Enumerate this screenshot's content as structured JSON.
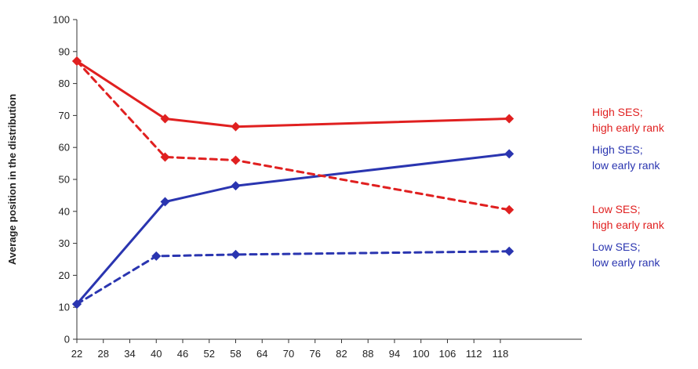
{
  "chart_data": {
    "type": "line",
    "title": "",
    "xlabel": "",
    "ylabel": "Average position in the distribution",
    "xlim": [
      22,
      120
    ],
    "ylim": [
      0,
      100
    ],
    "x_ticks": [
      "22",
      "28",
      "34",
      "40",
      "46",
      "52",
      "58",
      "64",
      "70",
      "76",
      "82",
      "88",
      "94",
      "100",
      "106",
      "112",
      "118"
    ],
    "y_ticks": [
      "0",
      "10",
      "20",
      "30",
      "40",
      "50",
      "60",
      "70",
      "80",
      "90",
      "100"
    ],
    "grid": false,
    "legend": "direct labels at right end of lines",
    "series": [
      {
        "name": "High SES; high early rank",
        "label_lines": [
          "High SES;",
          "high early rank"
        ],
        "color": "#e02020",
        "dash": "solid",
        "marker": "diamond",
        "points": [
          [
            22,
            87
          ],
          [
            42,
            69
          ],
          [
            58,
            66.5
          ],
          [
            120,
            69
          ]
        ]
      },
      {
        "name": "High SES; low early rank",
        "label_lines": [
          "High SES;",
          "low early rank"
        ],
        "color": "#2a35b0",
        "dash": "solid",
        "marker": "diamond",
        "points": [
          [
            22,
            11
          ],
          [
            42,
            43
          ],
          [
            58,
            48
          ],
          [
            120,
            58
          ]
        ]
      },
      {
        "name": "Low SES; high early rank",
        "label_lines": [
          "Low SES;",
          "high early rank"
        ],
        "color": "#e02020",
        "dash": "dashed",
        "marker": "diamond",
        "points": [
          [
            22,
            87
          ],
          [
            42,
            57
          ],
          [
            58,
            56
          ],
          [
            120,
            40.5
          ]
        ]
      },
      {
        "name": "Low SES; low early rank",
        "label_lines": [
          "Low SES;",
          "low early rank"
        ],
        "color": "#2a35b0",
        "dash": "dashed",
        "marker": "diamond",
        "points": [
          [
            22,
            11
          ],
          [
            40,
            26
          ],
          [
            58,
            26.5
          ],
          [
            120,
            27.5
          ]
        ]
      }
    ]
  }
}
